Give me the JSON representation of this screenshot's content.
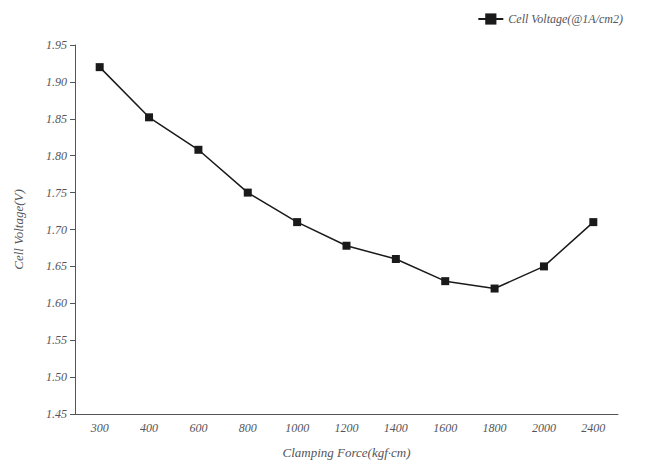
{
  "chart_data": {
    "type": "line",
    "categories": [
      "300",
      "400",
      "600",
      "800",
      "1000",
      "1200",
      "1400",
      "1600",
      "1800",
      "2000",
      "2400"
    ],
    "series": [
      {
        "name": "Cell Voltage(@1A/cm2)",
        "color": "#1a1a1a",
        "marker": "square",
        "values": [
          1.92,
          1.852,
          1.808,
          1.75,
          1.71,
          1.678,
          1.66,
          1.63,
          1.62,
          1.65,
          1.71
        ]
      }
    ],
    "xlabel": "Clamping Force(kgf·cm)",
    "ylabel": "Cell Voltage(V)",
    "ylim": [
      1.45,
      1.95
    ],
    "yticks": [
      1.45,
      {
        "value": 1.5,
        "label": "1.50"
      },
      1.55,
      {
        "value": 1.6,
        "label": "1.60"
      },
      1.65,
      {
        "value": 1.7,
        "label": "1.70"
      },
      1.75,
      {
        "value": 1.8,
        "label": "1.80"
      },
      1.85,
      {
        "value": 1.9,
        "label": "1.90"
      },
      1.95
    ],
    "grid": false,
    "legend": "upper right"
  }
}
